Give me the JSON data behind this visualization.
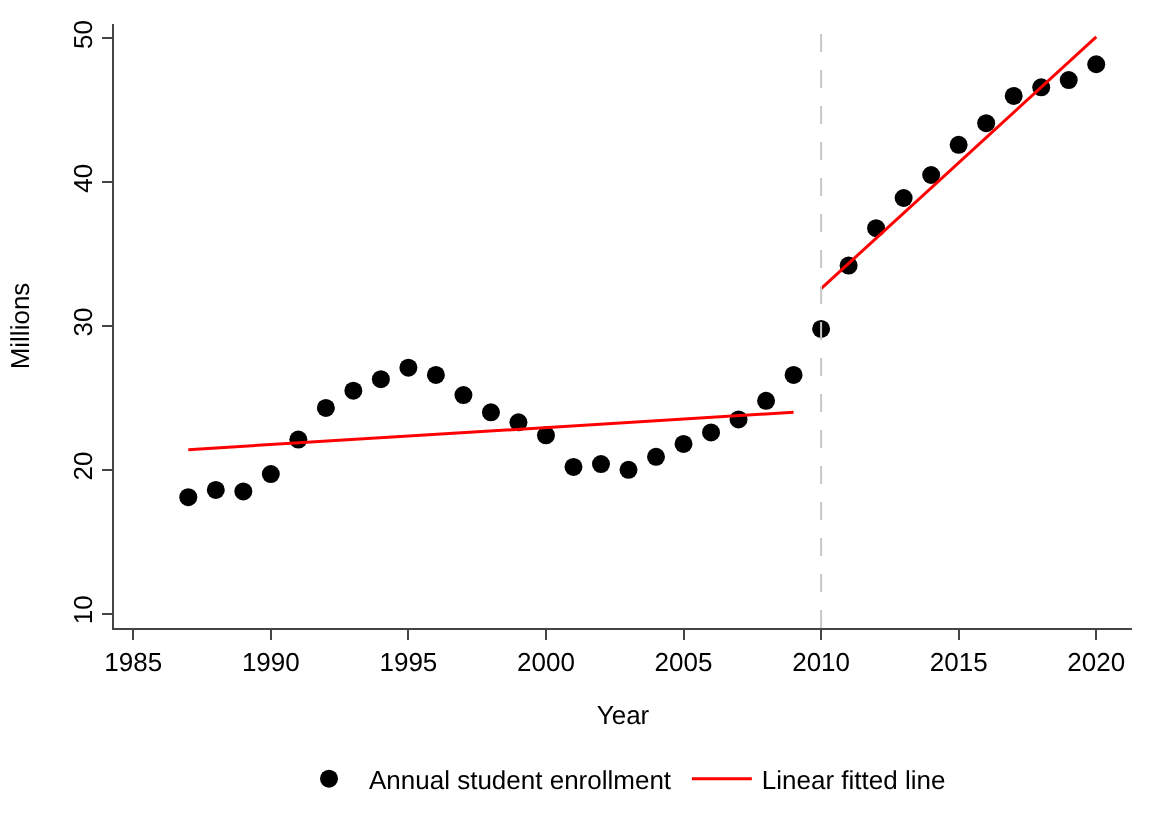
{
  "chart_data": {
    "type": "scatter",
    "xlabel": "Year",
    "ylabel": "Millions",
    "xlim": [
      1984.3,
      2021.3
    ],
    "xticks": [
      1985,
      1990,
      1995,
      2000,
      2005,
      2010,
      2015,
      2020
    ],
    "ylim": [
      9,
      51
    ],
    "yticks": [
      10,
      20,
      30,
      40,
      50
    ],
    "legend": "bottom",
    "series": [
      {
        "name": "Annual student enrollment",
        "marker": "circle",
        "color": "#000000",
        "x": [
          1987,
          1988,
          1989,
          1990,
          1991,
          1992,
          1993,
          1994,
          1995,
          1996,
          1997,
          1998,
          1999,
          2000,
          2001,
          2002,
          2003,
          2004,
          2005,
          2006,
          2007,
          2008,
          2009,
          2010,
          2011,
          2012,
          2013,
          2014,
          2015,
          2016,
          2017,
          2018,
          2019,
          2020
        ],
        "values": [
          18.1,
          18.6,
          18.5,
          19.7,
          22.1,
          24.3,
          25.5,
          26.3,
          27.1,
          26.6,
          25.2,
          24.0,
          23.3,
          22.4,
          20.2,
          20.4,
          20.0,
          20.9,
          21.8,
          22.6,
          23.5,
          24.8,
          26.6,
          29.8,
          34.2,
          36.8,
          38.9,
          40.5,
          42.6,
          44.1,
          46.0,
          46.6,
          47.1,
          48.2
        ]
      },
      {
        "name": "Linear fitted line",
        "type": "line",
        "line_style": "solid",
        "color": "#ff0000",
        "x": [
          1987,
          2009,
          null,
          2010,
          2020
        ],
        "values": [
          21.4,
          24.0,
          null,
          32.6,
          50.1
        ]
      }
    ],
    "ref_lines": [
      {
        "axis": "x",
        "value": 2010,
        "color": "#c8c8c8",
        "line_style": "dashed"
      }
    ]
  }
}
